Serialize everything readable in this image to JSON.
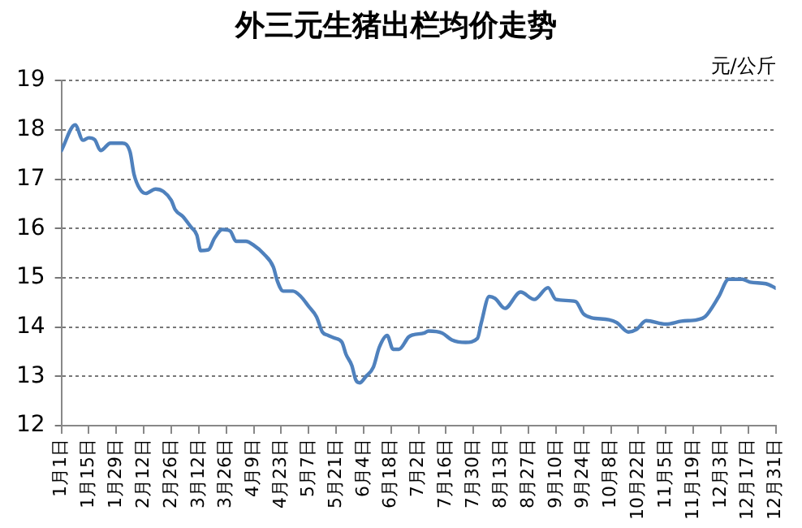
{
  "chart_data": {
    "type": "line",
    "title": "外三元生猪出栏均价走势",
    "ylabel": "元/公斤",
    "x": [
      "--01-01",
      "--01-08",
      "--01-12",
      "--01-15",
      "--01-18",
      "--01-21",
      "--01-26",
      "--02-01",
      "--02-05",
      "--02-07",
      "--02-10",
      "--02-13",
      "--02-18",
      "--02-22",
      "--02-26",
      "--02-28",
      "--03-04",
      "--03-08",
      "--03-11",
      "--03-13",
      "--03-17",
      "--03-20",
      "--03-24",
      "--03-28",
      "--03-31",
      "--04-05",
      "--04-09",
      "--04-14",
      "--04-19",
      "--04-21",
      "--04-24",
      "--04-29",
      "--05-03",
      "--05-07",
      "--05-11",
      "--05-14",
      "--05-17",
      "--05-20",
      "--05-24",
      "--05-26",
      "--05-29",
      "--05-31",
      "--06-02",
      "--06-05",
      "--06-09",
      "--06-12",
      "--06-16",
      "--06-19",
      "--06-22",
      "--06-27",
      "--06-29",
      "--07-05",
      "--07-07",
      "--07-14",
      "--07-19",
      "--07-26",
      "--08-01",
      "--08-03",
      "--08-07",
      "--08-10",
      "--08-15",
      "--08-23",
      "--08-30",
      "--09-06",
      "--09-10",
      "--09-20",
      "--09-24",
      "--09-28",
      "--10-07",
      "--10-11",
      "--10-17",
      "--10-21",
      "--10-26",
      "--11-05",
      "--11-13",
      "--11-21",
      "--11-25",
      "--12-02",
      "--12-07",
      "--12-14",
      "--12-18",
      "--12-26",
      "--12-31"
    ],
    "series": [
      {
        "color": "#4f81bd",
        "values": [
          17.58,
          18.1,
          17.79,
          17.84,
          17.8,
          17.58,
          17.73,
          17.73,
          17.55,
          17.1,
          16.8,
          16.71,
          16.8,
          16.75,
          16.57,
          16.38,
          16.24,
          16.03,
          15.87,
          15.55,
          15.57,
          15.8,
          15.98,
          15.95,
          15.74,
          15.74,
          15.66,
          15.49,
          15.22,
          14.94,
          14.73,
          14.73,
          14.62,
          14.42,
          14.21,
          13.9,
          13.83,
          13.78,
          13.69,
          13.45,
          13.22,
          12.93,
          12.87,
          12.99,
          13.19,
          13.59,
          13.83,
          13.55,
          13.55,
          13.8,
          13.84,
          13.88,
          13.92,
          13.88,
          13.74,
          13.69,
          13.77,
          14.09,
          14.62,
          14.58,
          14.38,
          14.71,
          14.56,
          14.8,
          14.56,
          14.52,
          14.27,
          14.19,
          14.15,
          14.09,
          13.9,
          13.95,
          14.13,
          14.06,
          14.12,
          14.15,
          14.21,
          14.62,
          14.97,
          14.97,
          14.91,
          14.88,
          14.79
        ]
      }
    ],
    "xlim": [
      "--01-01",
      "--12-31"
    ],
    "xticks": [
      {
        "value": "--01-01",
        "label": "1月1日"
      },
      {
        "value": "--01-15",
        "label": "1月15日"
      },
      {
        "value": "--01-29",
        "label": "1月29日"
      },
      {
        "value": "--02-12",
        "label": "2月12日"
      },
      {
        "value": "--02-26",
        "label": "2月26日"
      },
      {
        "value": "--03-12",
        "label": "3月12日"
      },
      {
        "value": "--03-26",
        "label": "3月26日"
      },
      {
        "value": "--04-09",
        "label": "4月9日"
      },
      {
        "value": "--04-23",
        "label": "4月23日"
      },
      {
        "value": "--05-07",
        "label": "5月7日"
      },
      {
        "value": "--05-21",
        "label": "5月21日"
      },
      {
        "value": "--06-04",
        "label": "6月4日"
      },
      {
        "value": "--06-18",
        "label": "6月18日"
      },
      {
        "value": "--07-02",
        "label": "7月2日"
      },
      {
        "value": "--07-16",
        "label": "7月16日"
      },
      {
        "value": "--07-30",
        "label": "7月30日"
      },
      {
        "value": "--08-13",
        "label": "8月13日"
      },
      {
        "value": "--08-27",
        "label": "8月27日"
      },
      {
        "value": "--09-10",
        "label": "9月10日"
      },
      {
        "value": "--09-24",
        "label": "9月24日"
      },
      {
        "value": "--10-08",
        "label": "10月8日"
      },
      {
        "value": "--10-22",
        "label": "10月22日"
      },
      {
        "value": "--11-05",
        "label": "11月5日"
      },
      {
        "value": "--11-19",
        "label": "11月19日"
      },
      {
        "value": "--12-03",
        "label": "12月3日"
      },
      {
        "value": "--12-17",
        "label": "12月17日"
      },
      {
        "value": "--12-31",
        "label": "12月31日"
      }
    ],
    "ylim": [
      12,
      19
    ],
    "yticks": [
      12,
      13,
      14,
      15,
      16,
      17,
      18,
      19
    ],
    "grid": "y",
    "legend": false,
    "marker": "none",
    "line_style": "solid"
  }
}
